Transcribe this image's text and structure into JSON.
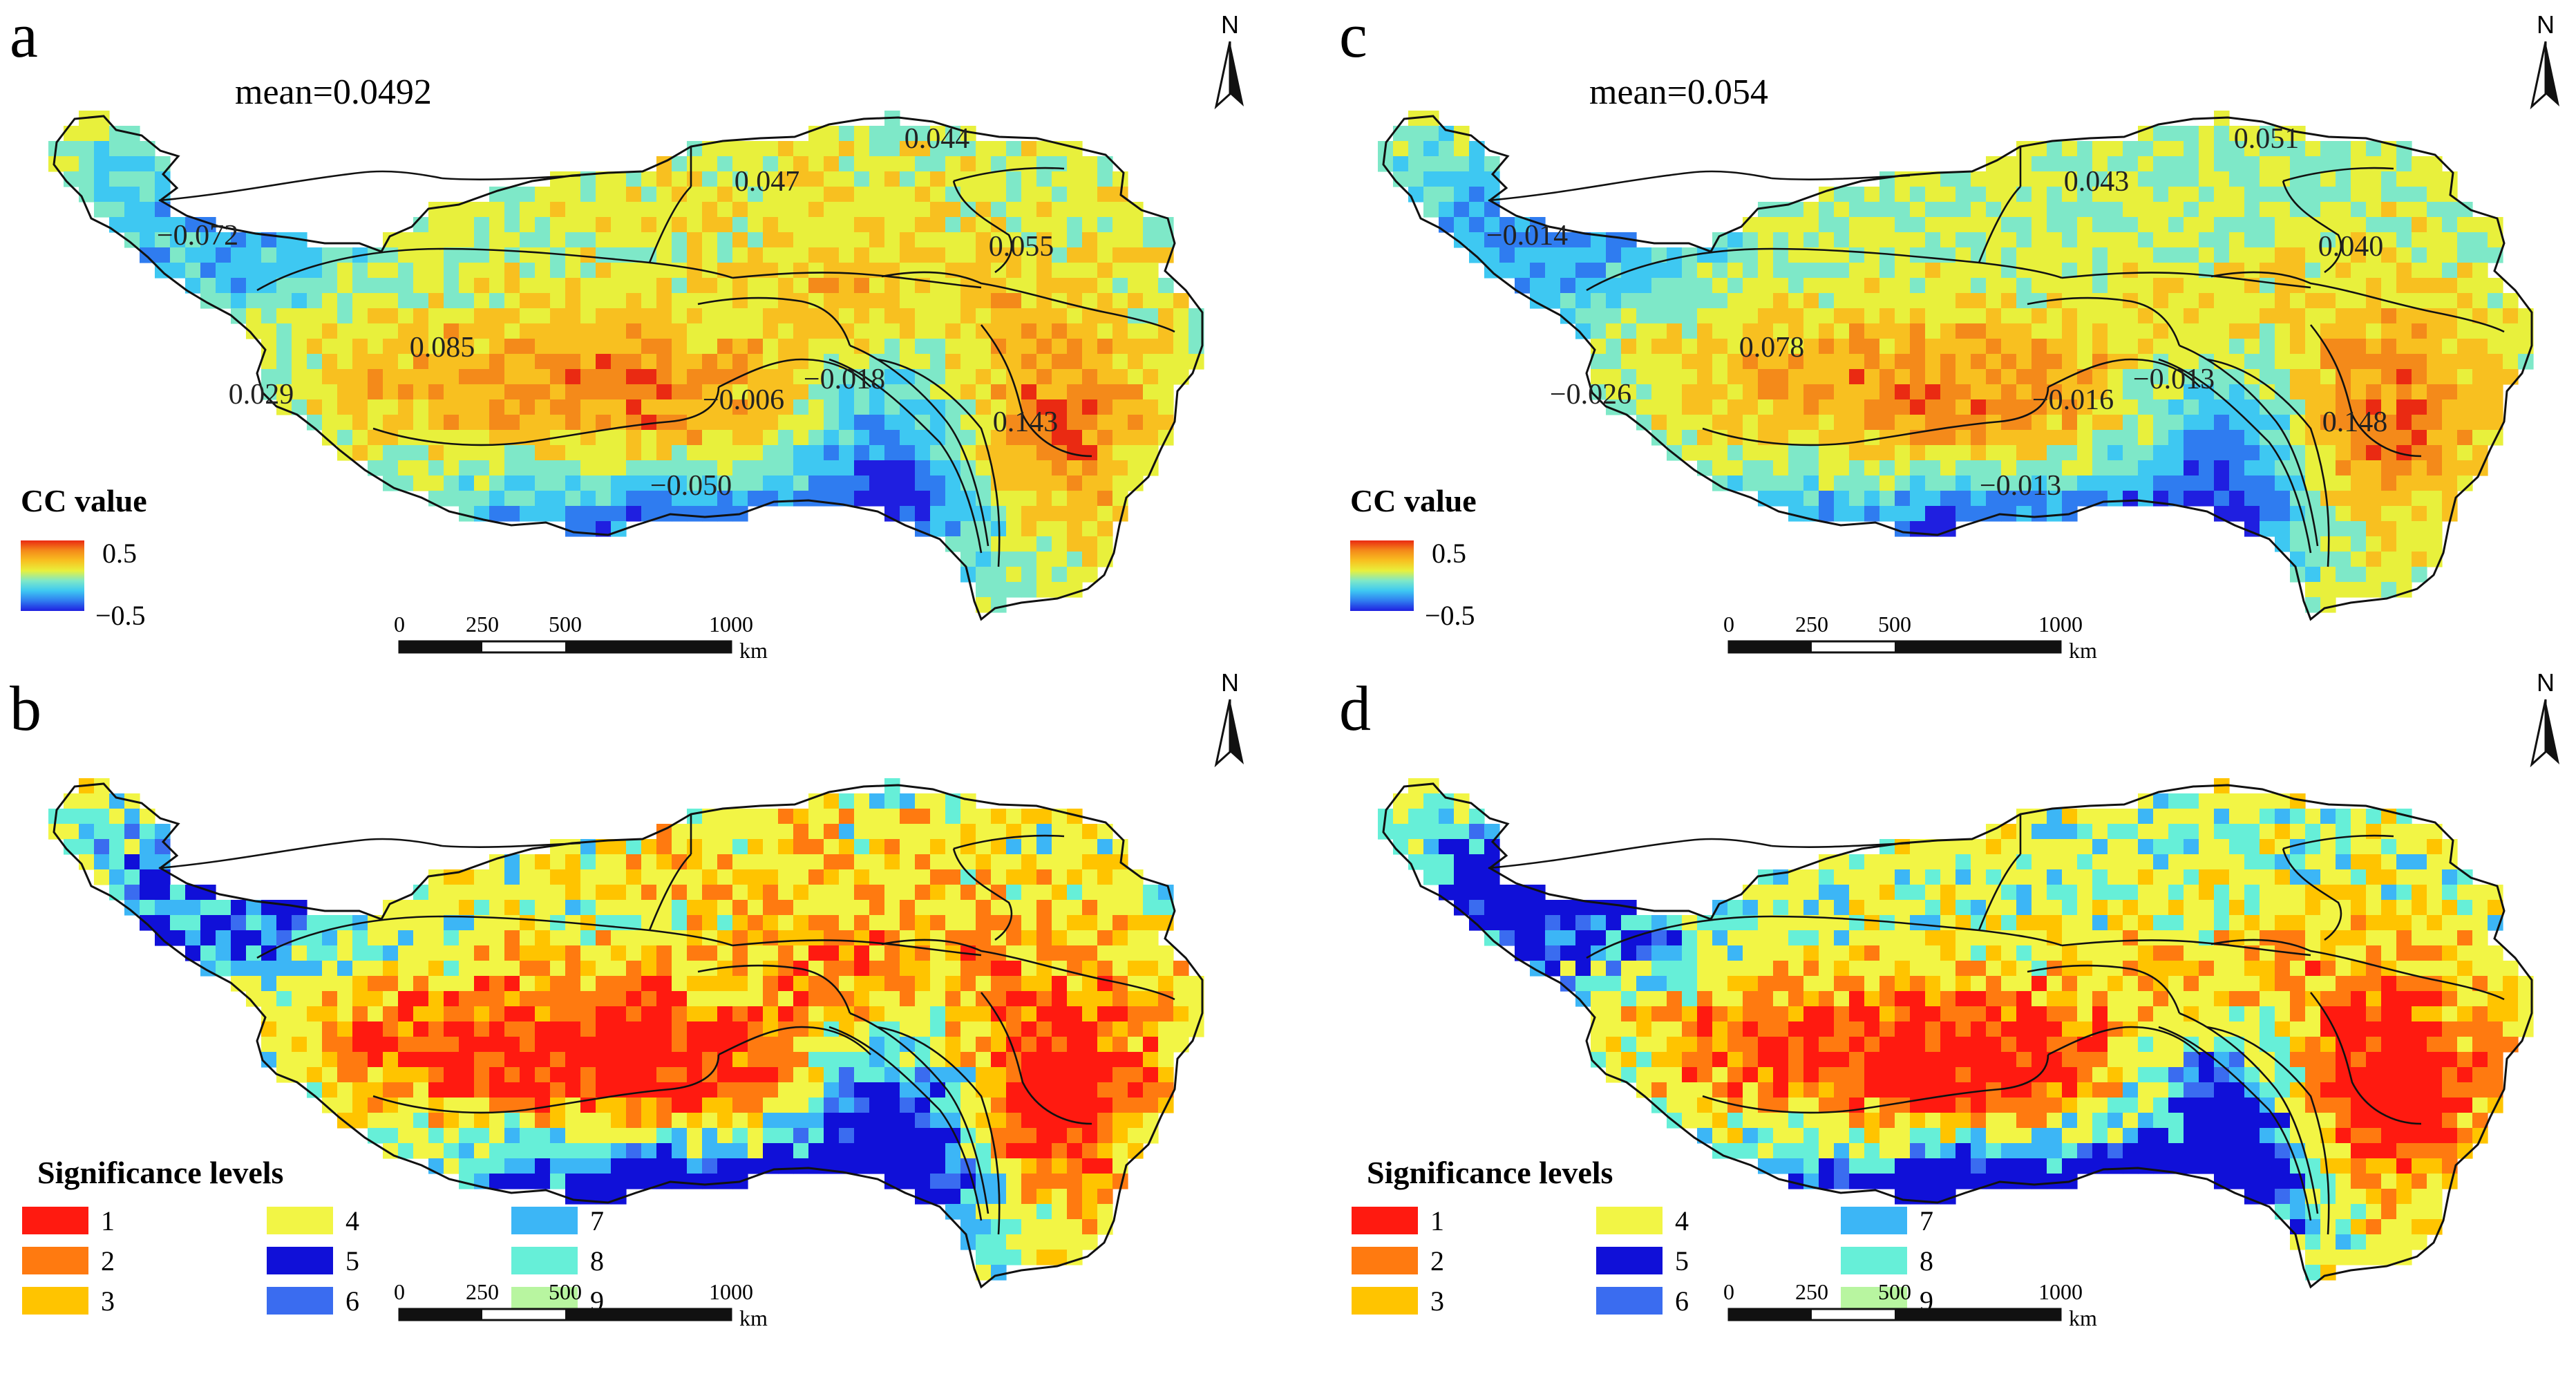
{
  "figure": {
    "colors": {
      "ramp": [
        "#1f1fe0",
        "#2f7cf0",
        "#3ec8f2",
        "#7ee8c8",
        "#e8f03c",
        "#f8c020",
        "#f48a1a",
        "#ea2a12"
      ],
      "sig": [
        "#ff1a10",
        "#ff7a10",
        "#ffc400",
        "#f2f545",
        "#1010d8",
        "#3a6cf0",
        "#3cb6f6",
        "#66efd8",
        "#b8f5a0"
      ],
      "border": "#111111"
    },
    "panels": [
      {
        "letter": "a",
        "kind": "cc",
        "mean": "mean=0.0492",
        "legend_title": "CC value",
        "legend_max": "0.5",
        "legend_min": "−0.5",
        "north": "N",
        "scale": [
          "0",
          "250",
          "500",
          "1000"
        ],
        "unit": "km",
        "labels": [
          "0.044",
          "0.047",
          "0.055",
          "−0.072",
          "0.085",
          "0.029",
          "−0.006",
          "−0.018",
          "0.143",
          "−0.050"
        ]
      },
      {
        "letter": "b",
        "kind": "sig",
        "legend_title": "Significance levels",
        "classes": [
          "1",
          "2",
          "3",
          "4",
          "5",
          "6",
          "7",
          "8",
          "9"
        ],
        "north": "N",
        "scale": [
          "0",
          "250",
          "500",
          "1000"
        ],
        "unit": "km"
      },
      {
        "letter": "c",
        "kind": "cc",
        "mean": "mean=0.054",
        "legend_title": "CC value",
        "legend_max": "0.5",
        "legend_min": "−0.5",
        "north": "N",
        "scale": [
          "0",
          "250",
          "500",
          "1000"
        ],
        "unit": "km",
        "labels": [
          "0.051",
          "0.043",
          "0.040",
          "−0.014",
          "0.078",
          "−0.026",
          "−0.016",
          "−0.013",
          "0.148",
          "−0.013"
        ]
      },
      {
        "letter": "d",
        "kind": "sig",
        "legend_title": "Significance levels",
        "classes": [
          "1",
          "2",
          "3",
          "4",
          "5",
          "6",
          "7",
          "8",
          "9"
        ],
        "north": "N",
        "scale": [
          "0",
          "250",
          "500",
          "1000"
        ],
        "unit": "km"
      }
    ]
  }
}
